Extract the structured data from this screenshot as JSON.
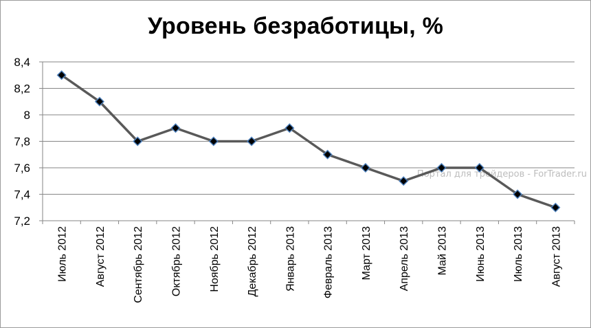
{
  "chart_data": {
    "type": "line",
    "title": "Уровень безработицы, %",
    "xlabel": "",
    "ylabel": "",
    "categories": [
      "Июль 2012",
      "Август 2012",
      "Сентябрь 2012",
      "Октябрь 2012",
      "Ноябрь 2012",
      "Декабрь 2012",
      "Январь 2013",
      "Февраль 2013",
      "Март 2013",
      "Апрель 2013",
      "Май 2013",
      "Июнь 2013",
      "Июль 2013",
      "Август 2013"
    ],
    "series": [
      {
        "values": [
          8.3,
          8.1,
          7.8,
          7.9,
          7.8,
          7.8,
          7.9,
          7.7,
          7.6,
          7.5,
          7.6,
          7.6,
          7.4,
          7.3
        ]
      }
    ],
    "ylim": [
      7.2,
      8.4
    ],
    "yticks": [
      "7,2",
      "7,4",
      "7,6",
      "7,8",
      "8",
      "8,2",
      "8,4"
    ],
    "grid": true,
    "legend": "none",
    "colors": {
      "line": "#595959",
      "marker_fill": "#000000",
      "marker_edge": "#4a7ebb",
      "grid": "#868686"
    }
  },
  "watermark": "Портал для трейдеров - ForTrader.ru"
}
